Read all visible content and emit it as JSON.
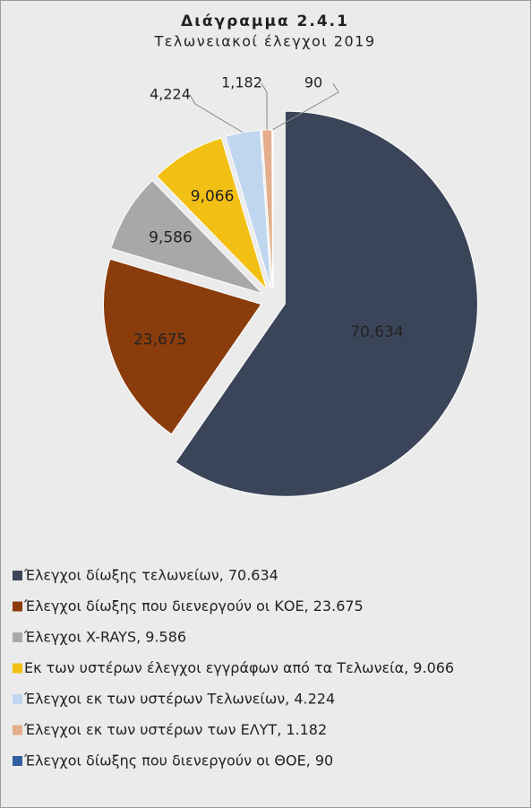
{
  "chart_data": {
    "type": "pie",
    "title": "Διάγραμμα 2.4.1",
    "subtitle": "Τελωνειακοί έλεγχοι 2019",
    "categories": [
      "Έλεγχοι δίωξης τελωνείων, 70.634",
      "Έλεγχοι δίωξης που διενεργούν οι  ΚΟΕ, 23.675",
      "Έλεγχοι X-RAYS, 9.586",
      "Εκ των υστέρων έλεγχοι εγγράφων από τα Τελωνεία, 9.066",
      "Έλεγχοι εκ των υστέρων Τελωνείων, 4.224",
      "Έλεγχοι εκ των υστέρων των ΕΛΥΤ, 1.182",
      "Έλεγχοι δίωξης που διενεργούν οι ΘΟΕ, 90"
    ],
    "values": [
      70634,
      23675,
      9586,
      9066,
      4224,
      1182,
      90
    ],
    "value_labels": [
      "70,634",
      "23,675",
      "9,586",
      "9,066",
      "4,224",
      "1,182",
      "90"
    ],
    "colors": [
      "#3b4559",
      "#8a3c0c",
      "#a8a8a8",
      "#f2c014",
      "#bfd6ee",
      "#e4ae8c",
      "#2f5f9f"
    ],
    "legend": "bottom"
  }
}
